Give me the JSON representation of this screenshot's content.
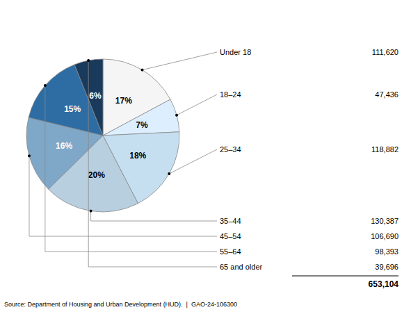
{
  "chart_data": {
    "type": "pie",
    "categories": [
      "Under 18",
      "18–24",
      "25–34",
      "35–44",
      "45–54",
      "55–64",
      "65 and older"
    ],
    "values": [
      17,
      7,
      18,
      20,
      16,
      15,
      6
    ],
    "value_labels": [
      "17%",
      "7%",
      "18%",
      "20%",
      "16%",
      "15%",
      "6%"
    ],
    "data_labels": true,
    "colors": [
      "#f5f5f5",
      "#ddeeff",
      "#c5dff0",
      "#b8cfe0",
      "#7fa8c8",
      "#2e6da4",
      "#1a3a5c"
    ],
    "count_labels": [
      "111,620",
      "47,436",
      "118,882",
      "130,387",
      "106,690",
      "98,393",
      "39,696"
    ],
    "total_label": "653,104",
    "annotations": [
      "Source: Department of Housing and Urban Development (HUD).  |  GAO-24-106300"
    ]
  }
}
